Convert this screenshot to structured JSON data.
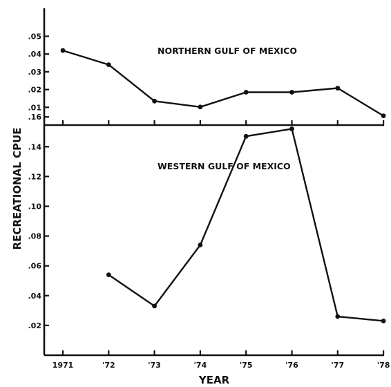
{
  "chart_data": [
    {
      "type": "line",
      "title": "NORTHERN GULF OF MEXICO",
      "xlabel": "YEAR",
      "ylabel": "RECREATIONAL CPUE",
      "x": [
        "1971",
        "'72",
        "'73",
        "'74",
        "'75",
        "'76",
        "'77",
        "'78"
      ],
      "ylim": [
        0,
        0.05
      ],
      "yticks": [
        ".01",
        ".02",
        ".03",
        ".04",
        ".05"
      ],
      "grid": false,
      "series": [
        {
          "values": [
            0.042,
            0.034,
            0.0135,
            0.0102,
            0.0185,
            0.0185,
            0.0208,
            0.0052
          ]
        }
      ]
    },
    {
      "type": "line",
      "title": "WESTERN GULF OF MEXICO",
      "xlabel": "YEAR",
      "ylabel": "RECREATIONAL CPUE",
      "x": [
        "1971",
        "'72",
        "'73",
        "'74",
        "'75",
        "'76",
        "'77",
        "'78"
      ],
      "ylim": [
        0,
        0.18
      ],
      "yticks": [
        ".02",
        ".04",
        ".06",
        ".08",
        ".10",
        ".12",
        ".14",
        ".16"
      ],
      "grid": false,
      "series": [
        {
          "values": [
            null,
            0.054,
            0.033,
            0.074,
            0.147,
            0.152,
            0.026,
            0.023
          ]
        }
      ]
    }
  ],
  "axes": {
    "shared_xlabel": "YEAR",
    "shared_ylabel": "RECREATIONAL CPUE"
  }
}
